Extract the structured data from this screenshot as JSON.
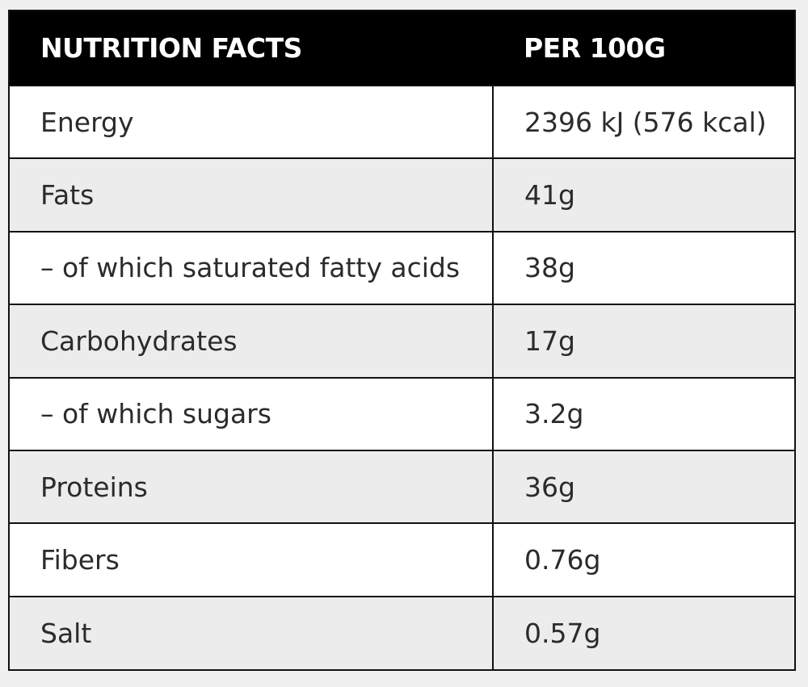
{
  "header": {
    "label": "NUTRITION FACTS",
    "value": "PER 100G"
  },
  "rows": [
    {
      "label": "Energy",
      "value": "2396 kJ (576 kcal)"
    },
    {
      "label": "Fats",
      "value": "41g"
    },
    {
      "label": "– of which saturated fatty acids",
      "value": "38g"
    },
    {
      "label": "Carbohydrates",
      "value": "17g"
    },
    {
      "label": "– of which sugars",
      "value": "3.2g"
    },
    {
      "label": "Proteins",
      "value": "36g"
    },
    {
      "label": "Fibers",
      "value": "0.76g"
    },
    {
      "label": "Salt",
      "value": "0.57g"
    }
  ],
  "colors": {
    "header_bg": "#000000",
    "header_text": "#ffffff",
    "row_alt_bg": "#ececec",
    "row_bg": "#ffffff",
    "border": "#111111"
  }
}
